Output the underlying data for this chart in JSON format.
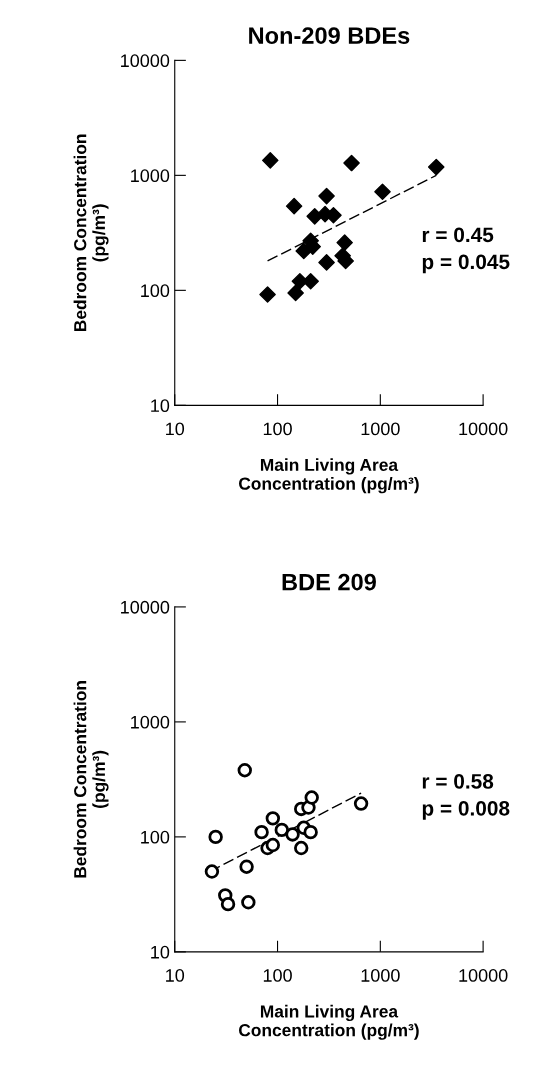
{
  "chart_data": [
    {
      "type": "scatter",
      "title": "Non-209 BDEs",
      "xlabel": "Main Living Area\nConcentration (pg/m³)",
      "ylabel": "Bedroom Concentration\n(pg/m³)",
      "log": "xy",
      "xlim": [
        10,
        10000
      ],
      "ylim": [
        10,
        10000
      ],
      "xticks": [
        10,
        100,
        1000,
        10000
      ],
      "yticks": [
        10,
        100,
        1000,
        10000
      ],
      "grid": false,
      "legend": false,
      "annotations": [
        "r = 0.45\np = 0.045"
      ],
      "series": [
        {
          "marker": "diamond",
          "color": "#000000",
          "x": [
            85,
            145,
            525,
            3500,
            1050,
            300,
            230,
            290,
            350,
            210,
            180,
            220,
            450,
            300,
            430,
            460,
            165,
            210,
            150,
            80
          ],
          "values": [
            1350,
            540,
            1280,
            1180,
            720,
            660,
            440,
            460,
            450,
            270,
            220,
            240,
            260,
            175,
            200,
            180,
            120,
            120,
            95,
            92
          ]
        },
        {
          "type": "line",
          "line_style": "dashed",
          "marker": "none",
          "color": "#000000",
          "x": [
            80,
            3500
          ],
          "values": [
            180,
            1000
          ]
        }
      ]
    },
    {
      "type": "scatter",
      "title": "BDE 209",
      "xlabel": "Main Living Area\nConcentration (pg/m³)",
      "ylabel": "Bedroom Concentration\n(pg/m³)",
      "log": "xy",
      "xlim": [
        10,
        10000
      ],
      "ylim": [
        10,
        10000
      ],
      "xticks": [
        10,
        100,
        1000,
        10000
      ],
      "yticks": [
        10,
        100,
        1000,
        10000
      ],
      "grid": false,
      "legend": false,
      "annotations": [
        "r = 0.58\np = 0.008"
      ],
      "series": [
        {
          "marker": "circle",
          "color": "#000000",
          "x": [
            48,
            25,
            23,
            31,
            33,
            52,
            50,
            70,
            80,
            90,
            90,
            110,
            140,
            170,
            170,
            180,
            200,
            210,
            215,
            650
          ],
          "values": [
            380,
            100,
            50,
            31,
            26,
            27,
            55,
            110,
            80,
            85,
            145,
            115,
            105,
            80,
            175,
            120,
            180,
            110,
            220,
            195
          ]
        },
        {
          "type": "line",
          "line_style": "dashed",
          "marker": "none",
          "color": "#000000",
          "x": [
            22,
            650
          ],
          "values": [
            50,
            240
          ]
        }
      ]
    }
  ]
}
